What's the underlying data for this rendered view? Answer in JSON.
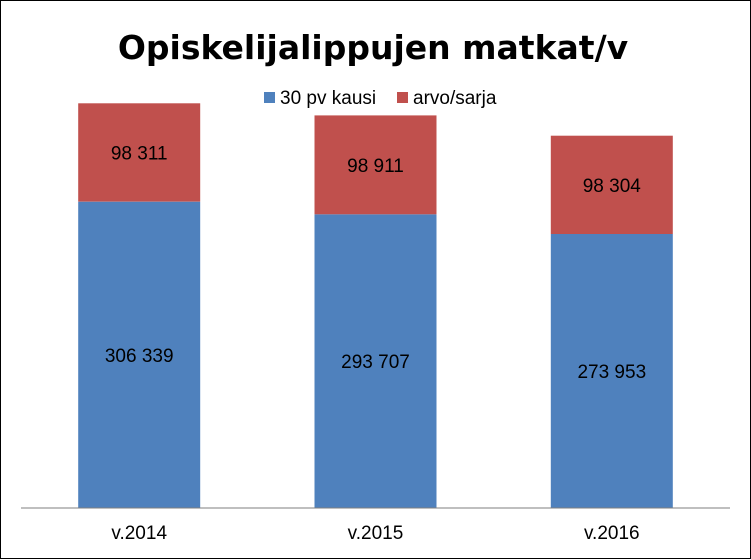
{
  "chart_data": {
    "type": "bar",
    "stacked": true,
    "title": "Opiskelijalippujen matkat/v",
    "categories": [
      "v.2014",
      "v.2015",
      "v.2016"
    ],
    "series": [
      {
        "name": "30 pv kausi",
        "color": "#4F81BD",
        "values": [
          306339,
          293707,
          273953
        ],
        "labels": [
          "306 339",
          "293 707",
          "273 953"
        ]
      },
      {
        "name": "arvo/sarja",
        "color": "#C0504D",
        "values": [
          98311,
          98911,
          98304
        ],
        "labels": [
          "98 311",
          "98 911",
          "98 304"
        ]
      }
    ],
    "legend_position": "top",
    "grid": false,
    "ylim": [
      0,
      450000
    ]
  }
}
